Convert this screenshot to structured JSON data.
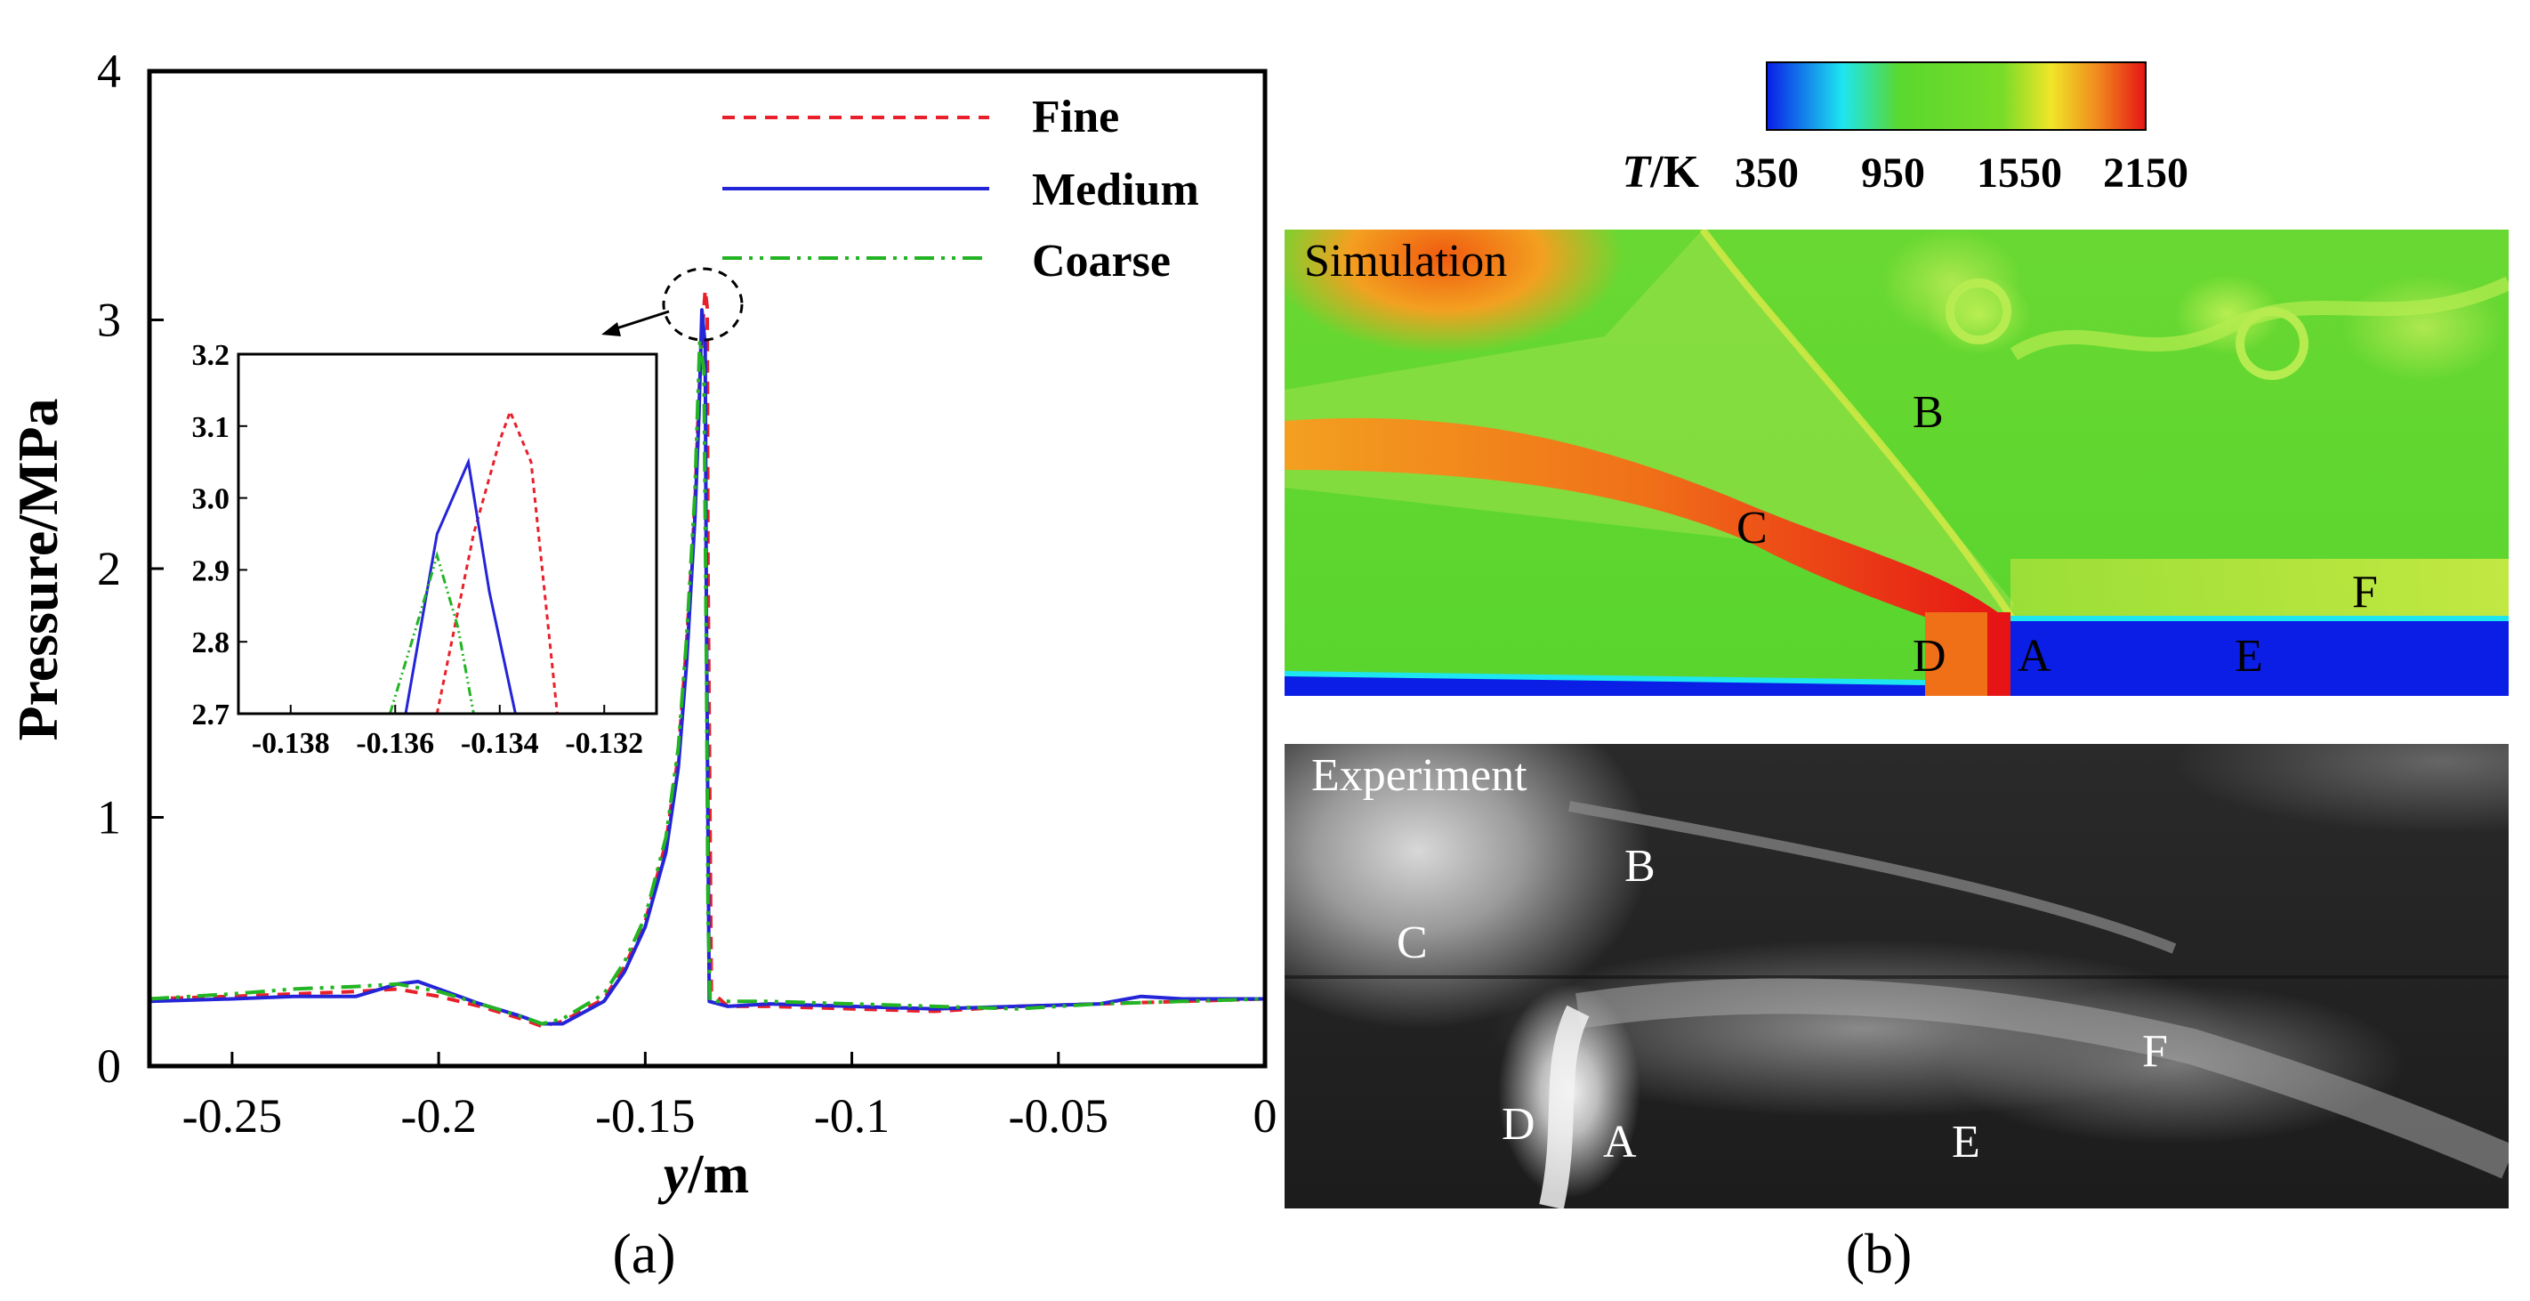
{
  "chart_data": [
    {
      "type": "line",
      "panel_label": "(a)",
      "xlabel_italic": "y",
      "xlabel_unit": "/m",
      "ylabel": "Pressure/MPa",
      "xlim": [
        -0.27,
        0
      ],
      "ylim": [
        0,
        4
      ],
      "xticks": [
        -0.25,
        -0.2,
        -0.15,
        -0.1,
        -0.05,
        0
      ],
      "xtick_labels": [
        "-0.25",
        "-0.2",
        "-0.15",
        "-0.1",
        "-0.05",
        "0"
      ],
      "yticks": [
        0,
        1,
        2,
        3,
        4
      ],
      "ytick_labels": [
        "0",
        "1",
        "2",
        "3",
        "4"
      ],
      "legend": {
        "position": "top-right"
      },
      "series": [
        {
          "name": "Fine",
          "color": "#e8202a",
          "style": "dashed",
          "x": [
            -0.27,
            -0.25,
            -0.235,
            -0.22,
            -0.21,
            -0.2,
            -0.19,
            -0.18,
            -0.175,
            -0.17,
            -0.16,
            -0.155,
            -0.15,
            -0.145,
            -0.142,
            -0.14,
            -0.138,
            -0.137,
            -0.136,
            -0.1355,
            -0.135,
            -0.1348,
            -0.134,
            -0.13,
            -0.12,
            -0.1,
            -0.08,
            -0.06,
            -0.04,
            -0.02,
            0
          ],
          "y": [
            0.27,
            0.28,
            0.29,
            0.3,
            0.31,
            0.28,
            0.24,
            0.19,
            0.16,
            0.18,
            0.27,
            0.4,
            0.58,
            0.9,
            1.25,
            1.7,
            2.25,
            2.7,
            3.0,
            3.12,
            3.05,
            2.0,
            0.3,
            0.24,
            0.24,
            0.23,
            0.22,
            0.24,
            0.25,
            0.26,
            0.27
          ]
        },
        {
          "name": "Medium",
          "color": "#2424d8",
          "style": "solid",
          "x": [
            -0.27,
            -0.25,
            -0.235,
            -0.22,
            -0.21,
            -0.205,
            -0.2,
            -0.19,
            -0.18,
            -0.175,
            -0.17,
            -0.16,
            -0.155,
            -0.15,
            -0.145,
            -0.142,
            -0.14,
            -0.138,
            -0.137,
            -0.1363,
            -0.1355,
            -0.1352,
            -0.1345,
            -0.13,
            -0.12,
            -0.1,
            -0.08,
            -0.06,
            -0.04,
            -0.03,
            -0.02,
            0
          ],
          "y": [
            0.26,
            0.27,
            0.28,
            0.28,
            0.33,
            0.34,
            0.31,
            0.25,
            0.2,
            0.17,
            0.17,
            0.26,
            0.38,
            0.56,
            0.86,
            1.2,
            1.62,
            2.2,
            2.62,
            3.04,
            2.9,
            1.8,
            0.26,
            0.24,
            0.25,
            0.24,
            0.23,
            0.24,
            0.25,
            0.28,
            0.27,
            0.27
          ]
        },
        {
          "name": "Coarse",
          "color": "#22b422",
          "style": "dashdotdot",
          "x": [
            -0.27,
            -0.25,
            -0.235,
            -0.22,
            -0.21,
            -0.2,
            -0.19,
            -0.18,
            -0.175,
            -0.17,
            -0.16,
            -0.155,
            -0.15,
            -0.145,
            -0.142,
            -0.14,
            -0.138,
            -0.1368,
            -0.1358,
            -0.1352,
            -0.1348,
            -0.1343,
            -0.13,
            -0.12,
            -0.1,
            -0.08,
            -0.06,
            -0.04,
            -0.02,
            0
          ],
          "y": [
            0.27,
            0.29,
            0.31,
            0.32,
            0.33,
            0.3,
            0.25,
            0.2,
            0.17,
            0.19,
            0.29,
            0.42,
            0.6,
            0.92,
            1.28,
            1.72,
            2.3,
            2.92,
            2.8,
            1.6,
            0.6,
            0.26,
            0.26,
            0.26,
            0.25,
            0.24,
            0.23,
            0.25,
            0.26,
            0.27
          ]
        }
      ],
      "inset": {
        "xlim": [
          -0.139,
          -0.131
        ],
        "ylim": [
          2.7,
          3.2
        ],
        "xticks": [
          -0.138,
          -0.136,
          -0.134,
          -0.132
        ],
        "xtick_labels": [
          "-0.138",
          "-0.136",
          "-0.134",
          "-0.132"
        ],
        "yticks": [
          2.7,
          2.8,
          2.9,
          3.0,
          3.1,
          3.2
        ],
        "ytick_labels": [
          "2.7",
          "2.8",
          "2.9",
          "3.0",
          "3.1",
          "3.2"
        ],
        "series": [
          {
            "name": "Fine",
            "x": [
              -0.1352,
              -0.1345,
              -0.134,
              -0.1338,
              -0.1334,
              -0.1329
            ],
            "y": [
              2.7,
              2.95,
              3.08,
              3.12,
              3.05,
              2.7
            ]
          },
          {
            "name": "Medium",
            "x": [
              -0.1358,
              -0.1352,
              -0.1346,
              -0.1342,
              -0.1337
            ],
            "y": [
              2.7,
              2.95,
              3.05,
              2.87,
              2.7
            ]
          },
          {
            "name": "Coarse",
            "x": [
              -0.1361,
              -0.1356,
              -0.1352,
              -0.1348,
              -0.1345
            ],
            "y": [
              2.7,
              2.82,
              2.92,
              2.82,
              2.7
            ]
          }
        ]
      }
    },
    {
      "type": "heatmap",
      "panel_label": "(b)",
      "colorbar": {
        "label_italic": "T",
        "label_unit": "/K",
        "min": 350,
        "max": 2150,
        "tick_labels": [
          "350",
          "950",
          "1550",
          "2150"
        ],
        "colors": [
          "#0a1ee6",
          "#1ee6f0",
          "#5ad82e",
          "#78dc28",
          "#f0e628",
          "#f08c1e",
          "#e61414"
        ]
      },
      "simulation": {
        "title": "Simulation",
        "labels": [
          "A",
          "B",
          "C",
          "D",
          "E",
          "F"
        ]
      },
      "experiment": {
        "title": "Experiment",
        "labels": [
          "A",
          "B",
          "C",
          "D",
          "E",
          "F"
        ]
      }
    }
  ]
}
